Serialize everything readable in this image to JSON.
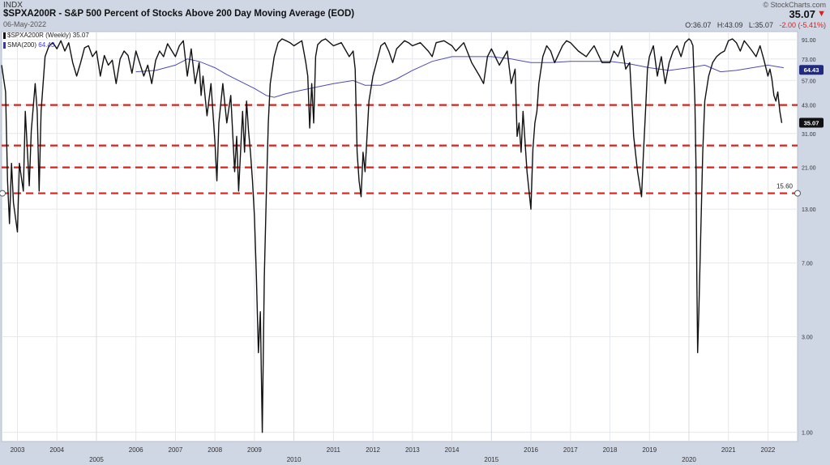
{
  "header": {
    "exchange": "INDX",
    "title": "$SPXA200R - S&P 500 Percent of Stocks Above 200 Day Moving Average (EOD)",
    "date": "06-May-2022",
    "copyright": "© StockCharts.com",
    "last_price": "35.07",
    "ohlc": {
      "open_label": "O:",
      "open": "36.07",
      "high_label": "H:",
      "high": "43.09",
      "low_label": "L:",
      "low": "35.07",
      "change": "-2.00 (-5.41%)"
    }
  },
  "legend": {
    "main": "$SPXA200R (Weekly) 35.07",
    "sma_label": "SMA(200)",
    "sma_value": "64.43"
  },
  "colors": {
    "price": "#111111",
    "sma": "#4b4bb4",
    "hline": "#d9221c",
    "background": "#ffffff",
    "frame": "#cfd6e4"
  },
  "chart_data": {
    "type": "line",
    "title": "$SPXA200R - S&P 500 Percent of Stocks Above 200 Day Moving Average (EOD)",
    "xlabel": "",
    "ylabel": "",
    "y_scale": "log",
    "ylim": [
      0.9,
      100
    ],
    "xlim": [
      2002.6,
      2022.75
    ],
    "grid": true,
    "y_ticks": [
      "1.00",
      "3.00",
      "7.00",
      "13.00",
      "21.00",
      "31.00",
      "43.00",
      "57.00",
      "73.00",
      "91.00"
    ],
    "x_ticks_upper": [
      "2003",
      "2004",
      "2006",
      "2007",
      "2008",
      "2009",
      "2011",
      "2012",
      "2013",
      "2014",
      "2016",
      "2017",
      "2018",
      "2019",
      "2021",
      "2022"
    ],
    "x_ticks_lower": [
      "2005",
      "2010",
      "2015",
      "2020"
    ],
    "horizontal_lines": [
      43,
      27,
      21,
      15.6
    ],
    "hline_label": "15.60",
    "price_label": "35.07",
    "sma_label": "64.43",
    "series": [
      {
        "name": "$SPXA200R (Weekly)",
        "x": [
          2002.6,
          2002.7,
          2002.75,
          2002.8,
          2002.85,
          2002.9,
          2003.0,
          2003.05,
          2003.15,
          2003.2,
          2003.3,
          2003.35,
          2003.45,
          2003.5,
          2003.55,
          2003.6,
          2003.7,
          2003.8,
          2003.9,
          2004.0,
          2004.1,
          2004.2,
          2004.3,
          2004.4,
          2004.5,
          2004.6,
          2004.7,
          2004.8,
          2004.9,
          2005.0,
          2005.1,
          2005.2,
          2005.3,
          2005.4,
          2005.5,
          2005.6,
          2005.7,
          2005.8,
          2005.9,
          2006.0,
          2006.2,
          2006.3,
          2006.4,
          2006.5,
          2006.6,
          2006.7,
          2006.8,
          2007.0,
          2007.1,
          2007.2,
          2007.3,
          2007.4,
          2007.5,
          2007.6,
          2007.65,
          2007.7,
          2007.8,
          2007.9,
          2008.0,
          2008.05,
          2008.1,
          2008.2,
          2008.3,
          2008.4,
          2008.5,
          2008.55,
          2008.6,
          2008.7,
          2008.75,
          2008.8,
          2008.85,
          2008.9,
          2008.95,
          2009.0,
          2009.05,
          2009.1,
          2009.15,
          2009.2,
          2009.25,
          2009.3,
          2009.35,
          2009.4,
          2009.5,
          2009.6,
          2009.7,
          2009.8,
          2009.9,
          2010.0,
          2010.2,
          2010.3,
          2010.35,
          2010.4,
          2010.45,
          2010.5,
          2010.55,
          2010.6,
          2010.7,
          2010.8,
          2011.0,
          2011.2,
          2011.4,
          2011.5,
          2011.55,
          2011.6,
          2011.65,
          2011.7,
          2011.75,
          2011.8,
          2011.85,
          2011.9,
          2012.0,
          2012.2,
          2012.3,
          2012.4,
          2012.5,
          2012.6,
          2012.8,
          2012.9,
          2013.0,
          2013.2,
          2013.4,
          2013.5,
          2013.6,
          2013.8,
          2014.0,
          2014.1,
          2014.3,
          2014.5,
          2014.7,
          2014.8,
          2014.9,
          2015.0,
          2015.2,
          2015.4,
          2015.5,
          2015.6,
          2015.65,
          2015.7,
          2015.75,
          2015.8,
          2015.9,
          2016.0,
          2016.05,
          2016.1,
          2016.15,
          2016.2,
          2016.3,
          2016.4,
          2016.5,
          2016.6,
          2016.8,
          2016.9,
          2017.0,
          2017.2,
          2017.4,
          2017.5,
          2017.6,
          2017.8,
          2018.0,
          2018.1,
          2018.2,
          2018.3,
          2018.4,
          2018.5,
          2018.6,
          2018.7,
          2018.8,
          2018.85,
          2018.9,
          2018.95,
          2019.0,
          2019.05,
          2019.1,
          2019.2,
          2019.3,
          2019.4,
          2019.5,
          2019.6,
          2019.7,
          2019.8,
          2019.9,
          2020.0,
          2020.05,
          2020.1,
          2020.15,
          2020.18,
          2020.2,
          2020.22,
          2020.25,
          2020.3,
          2020.35,
          2020.4,
          2020.5,
          2020.6,
          2020.7,
          2020.8,
          2020.9,
          2021.0,
          2021.1,
          2021.2,
          2021.3,
          2021.4,
          2021.5,
          2021.6,
          2021.7,
          2021.8,
          2021.9,
          2022.0,
          2022.05,
          2022.1,
          2022.15,
          2022.2,
          2022.25,
          2022.3,
          2022.35
        ],
        "y": [
          68,
          50,
          18,
          11,
          22,
          14,
          10,
          22,
          16,
          40,
          17,
          32,
          55,
          40,
          16,
          40,
          75,
          85,
          88,
          82,
          90,
          80,
          88,
          70,
          60,
          70,
          83,
          85,
          75,
          80,
          60,
          76,
          68,
          72,
          55,
          73,
          80,
          76,
          62,
          80,
          60,
          68,
          55,
          72,
          80,
          75,
          87,
          75,
          85,
          90,
          60,
          82,
          55,
          70,
          48,
          60,
          38,
          55,
          28,
          18,
          35,
          55,
          35,
          48,
          20,
          30,
          16,
          40,
          25,
          45,
          32,
          25,
          18,
          12,
          6,
          2.5,
          4,
          1.0,
          6,
          15,
          35,
          55,
          75,
          88,
          92,
          90,
          88,
          85,
          90,
          70,
          60,
          33,
          55,
          35,
          75,
          86,
          90,
          92,
          85,
          88,
          75,
          80,
          65,
          25,
          18,
          15,
          25,
          20,
          30,
          45,
          60,
          85,
          88,
          80,
          70,
          82,
          90,
          88,
          85,
          88,
          80,
          75,
          88,
          90,
          85,
          80,
          88,
          70,
          60,
          55,
          75,
          82,
          68,
          80,
          55,
          65,
          30,
          35,
          25,
          40,
          20,
          13,
          26,
          35,
          40,
          55,
          75,
          85,
          80,
          70,
          85,
          90,
          88,
          80,
          75,
          80,
          85,
          70,
          70,
          80,
          75,
          85,
          65,
          70,
          30,
          20,
          15,
          25,
          40,
          65,
          75,
          80,
          85,
          60,
          75,
          55,
          70,
          80,
          85,
          75,
          88,
          92,
          90,
          85,
          45,
          20,
          6,
          2.5,
          4,
          10,
          25,
          45,
          60,
          70,
          75,
          78,
          80,
          90,
          92,
          88,
          80,
          90,
          85,
          80,
          75,
          85,
          72,
          60,
          65,
          58,
          48,
          45,
          50,
          40,
          35
        ]
      },
      {
        "name": "SMA(200)",
        "x": [
          2006.0,
          2006.5,
          2007.0,
          2007.3,
          2007.6,
          2008.0,
          2008.3,
          2008.6,
          2009.0,
          2009.3,
          2009.5,
          2009.8,
          2010.2,
          2010.6,
          2011.0,
          2011.5,
          2011.8,
          2012.2,
          2012.6,
          2013.0,
          2013.5,
          2014.0,
          2014.5,
          2015.0,
          2015.5,
          2016.0,
          2016.5,
          2017.0,
          2017.5,
          2018.0,
          2018.5,
          2019.0,
          2019.5,
          2020.0,
          2020.4,
          2020.8,
          2021.2,
          2021.6,
          2022.0,
          2022.4
        ],
        "y": [
          63,
          64,
          68,
          73,
          71,
          66,
          61,
          57,
          52,
          48,
          47,
          49,
          51,
          53,
          55,
          57,
          54,
          54,
          58,
          64,
          71,
          75,
          75,
          75,
          73,
          70,
          70,
          71,
          71,
          71,
          69,
          66,
          64,
          66,
          68,
          63,
          64,
          66,
          68,
          66
        ]
      }
    ]
  }
}
